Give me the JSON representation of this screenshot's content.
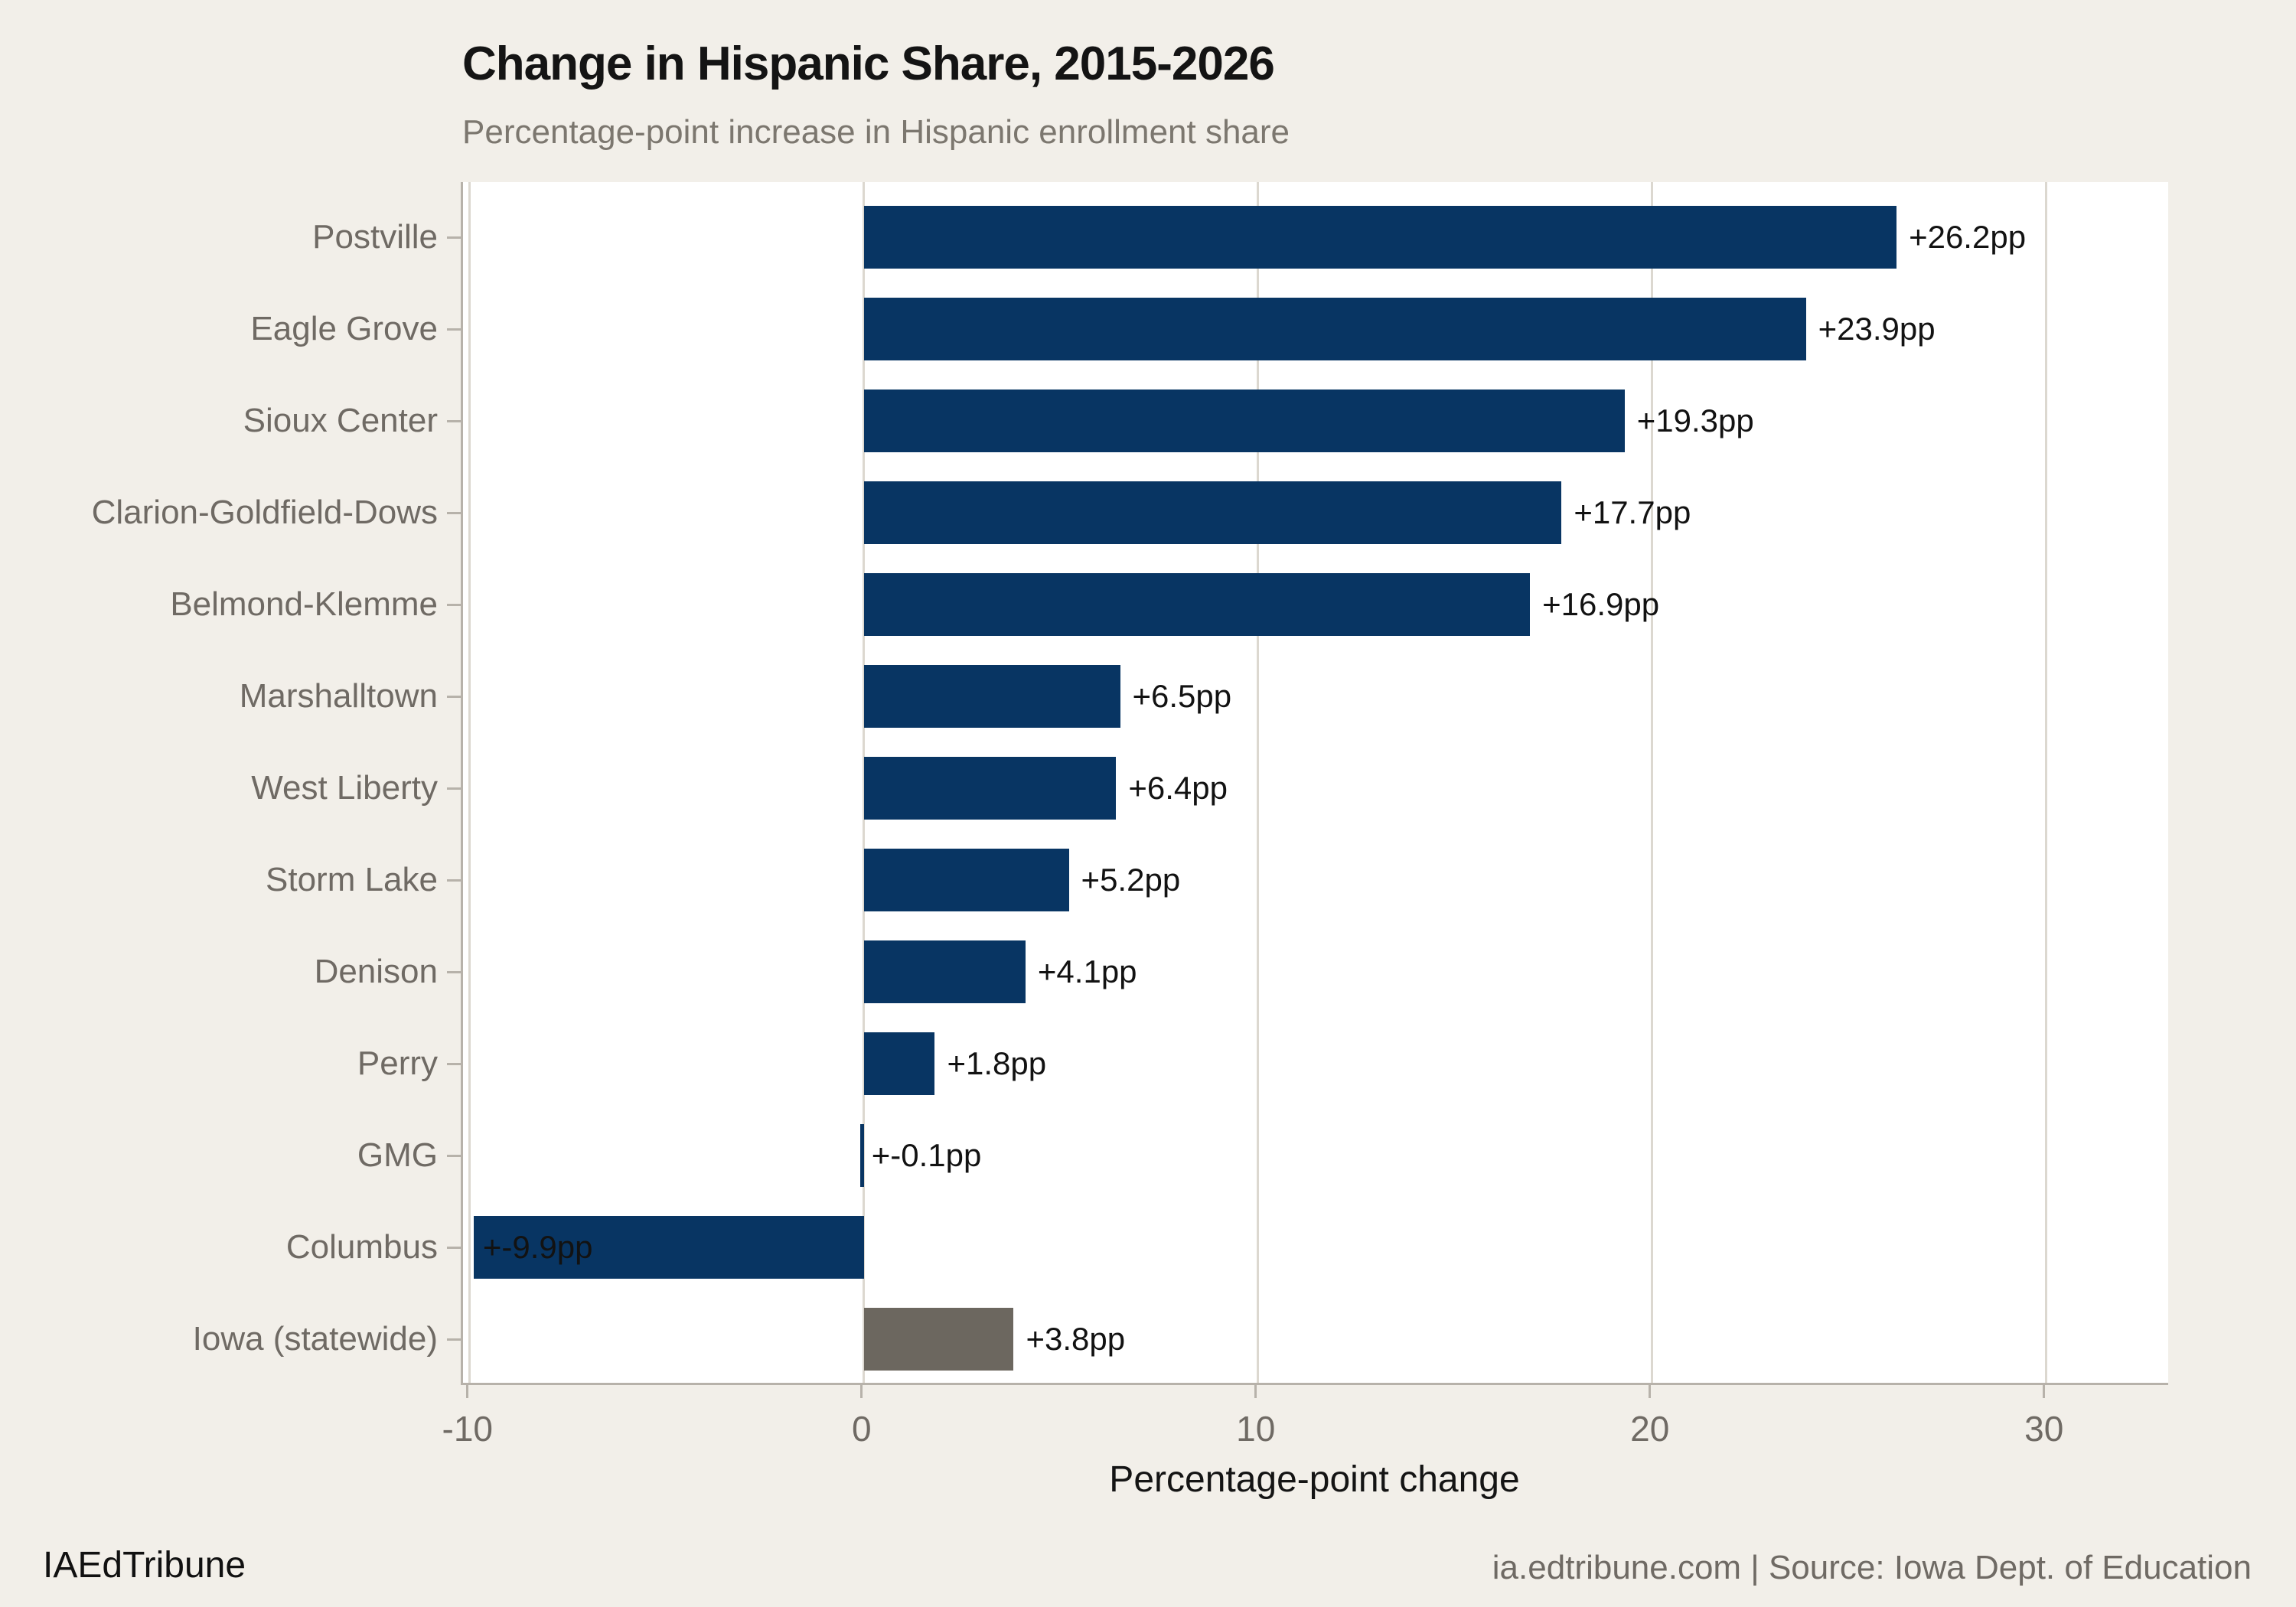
{
  "header": {
    "title": "Change in Hispanic Share, 2015-2026",
    "subtitle": "Percentage-point increase in Hispanic enrollment share"
  },
  "footer": {
    "brand": "IAEdTribune",
    "source": "ia.edtribune.com | Source: Iowa Dept. of Education"
  },
  "colors": {
    "background": "#f2efe9",
    "plot_background": "#ffffff",
    "district_bar": "#083563",
    "statewide_bar": "#6c675f",
    "gridline": "#dcd8d0",
    "axis_spine": "#b7b2aa",
    "tick_label": "#6f6a64",
    "category_label": "#6f6a64",
    "subtitle_text": "#7c776f",
    "value_label": "#121212",
    "title_text": "#141414"
  },
  "chart_data": {
    "type": "bar",
    "orientation": "horizontal",
    "title": "Change in Hispanic Share, 2015-2026",
    "subtitle": "Percentage-point increase in Hispanic enrollment share",
    "xlabel": "Percentage-point change",
    "ylabel": "",
    "xlim": [
      -10.17,
      33.15
    ],
    "xticks": [
      -10,
      0,
      10,
      20,
      30
    ],
    "grid": "vertical",
    "legend": "none",
    "categories": [
      "Postville",
      "Eagle Grove",
      "Sioux Center",
      "Clarion-Goldfield-Dows",
      "Belmond-Klemme",
      "Marshalltown",
      "West Liberty",
      "Storm Lake",
      "Denison",
      "Perry",
      "GMG",
      "Columbus",
      "Iowa (statewide)"
    ],
    "values": [
      26.2,
      23.9,
      19.3,
      17.7,
      16.9,
      6.5,
      6.4,
      5.2,
      4.1,
      1.8,
      -0.1,
      -9.9,
      3.8
    ],
    "bar_labels": [
      "+26.2pp",
      "+23.9pp",
      "+19.3pp",
      "+17.7pp",
      "+16.9pp",
      "+6.5pp",
      "+6.4pp",
      "+5.2pp",
      "+4.1pp",
      "+1.8pp",
      "+-0.1pp",
      "+-9.9pp",
      "+3.8pp"
    ],
    "bar_roles": [
      "district",
      "district",
      "district",
      "district",
      "district",
      "district",
      "district",
      "district",
      "district",
      "district",
      "district",
      "district",
      "statewide"
    ]
  }
}
